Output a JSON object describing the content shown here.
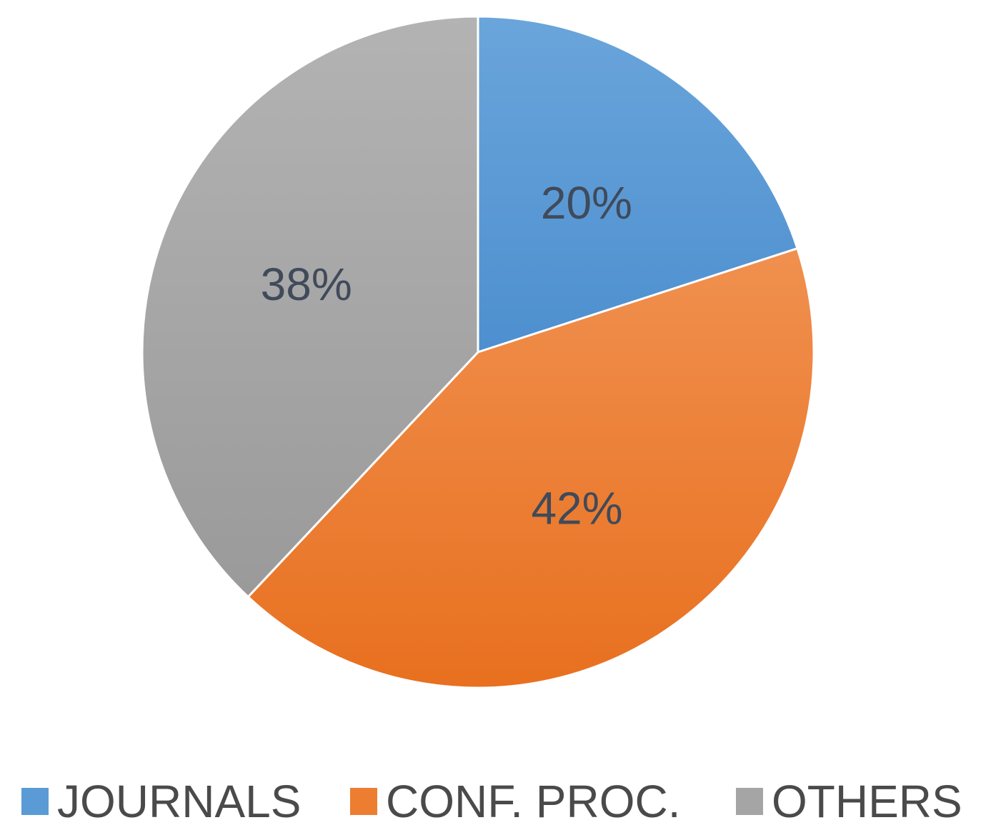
{
  "chart_data": {
    "type": "pie",
    "categories": [
      "JOURNALS",
      "CONF. PROC.",
      "OTHERS"
    ],
    "values": [
      20,
      42,
      38
    ],
    "labels": [
      "20%",
      "42%",
      "38%"
    ],
    "colors": [
      "#5b9bd5",
      "#ed7d31",
      "#a5a5a5"
    ],
    "start_angle_deg": 0,
    "direction": "clockwise",
    "legend_position": "bottom"
  }
}
